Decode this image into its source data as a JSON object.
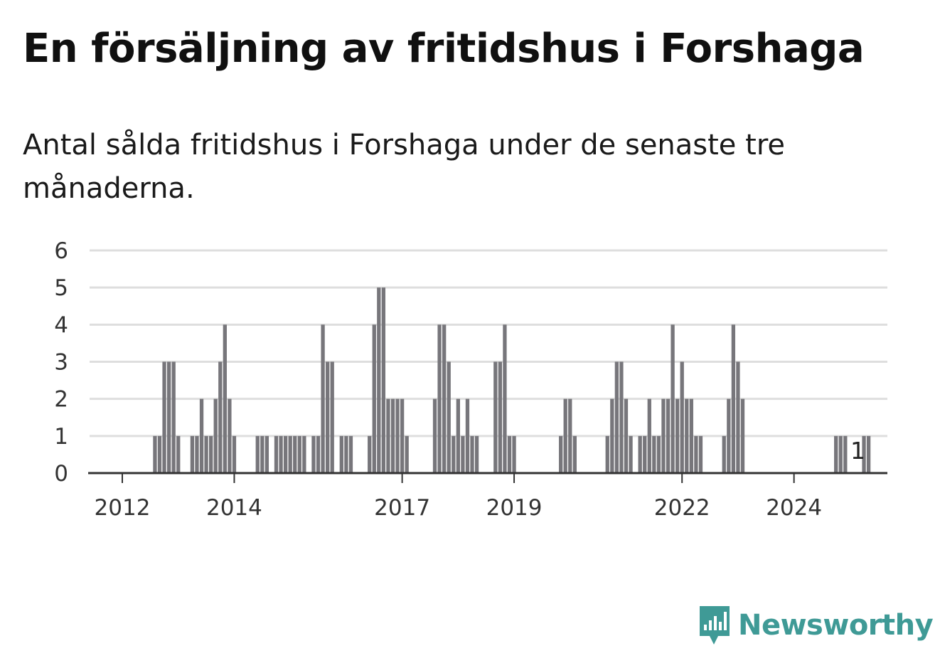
{
  "title": "En försäljning av fritidshus i Forshaga",
  "subtitle": "Antal sålda fritidshus i Forshaga under de senaste tre månaderna.",
  "brand": {
    "name": "Newsworthy",
    "icon": "newsworthy-logo-icon"
  },
  "colors": {
    "bar": "#77767b",
    "highlight": "#1b9a96",
    "grid": "#dedede",
    "axis": "#333333",
    "brand": "#3f9a96"
  },
  "chart_data": {
    "type": "bar",
    "title": "En försäljning av fritidshus i Forshaga",
    "xlabel": "",
    "ylabel": "",
    "ylim": [
      0,
      6
    ],
    "yticks": [
      0,
      1,
      2,
      3,
      4,
      5,
      6
    ],
    "xticks": [
      {
        "label": "2012",
        "index": 6
      },
      {
        "label": "2014",
        "index": 30
      },
      {
        "label": "2017",
        "index": 66
      },
      {
        "label": "2019",
        "index": 90
      },
      {
        "label": "2022",
        "index": 126
      },
      {
        "label": "2024",
        "index": 150
      }
    ],
    "grid": true,
    "legend": "none",
    "series": [
      {
        "values": [
          0,
          0,
          0,
          0,
          0,
          0,
          0,
          0,
          0,
          0,
          0,
          0,
          0,
          1,
          1,
          3,
          3,
          3,
          1,
          0,
          0,
          1,
          1,
          2,
          1,
          1,
          2,
          3,
          4,
          2,
          1,
          0,
          0,
          0,
          0,
          1,
          1,
          1,
          0,
          1,
          1,
          1,
          1,
          1,
          1,
          1,
          0,
          1,
          1,
          4,
          3,
          3,
          0,
          1,
          1,
          1,
          0,
          0,
          0,
          1,
          4,
          5,
          5,
          2,
          2,
          2,
          2,
          1,
          0,
          0,
          0,
          0,
          0,
          2,
          4,
          4,
          3,
          1,
          2,
          1,
          2,
          1,
          1,
          0,
          0,
          0,
          3,
          3,
          4,
          1,
          1,
          0,
          0,
          0,
          0,
          0,
          0,
          0,
          0,
          0,
          1,
          2,
          2,
          1,
          0,
          0,
          0,
          0,
          0,
          0,
          1,
          2,
          3,
          3,
          2,
          1,
          0,
          1,
          1,
          2,
          1,
          1,
          2,
          2,
          4,
          2,
          3,
          2,
          2,
          1,
          1,
          0,
          0,
          0,
          0,
          1,
          2,
          4,
          3,
          2,
          0,
          0,
          0,
          0,
          0,
          0,
          0,
          0,
          0,
          0,
          0,
          0,
          0,
          0,
          0,
          0,
          0,
          0,
          0,
          1,
          1,
          1,
          0,
          0,
          0,
          1,
          1
        ]
      }
    ],
    "highlight_index": 164,
    "highlight_label": "1"
  }
}
